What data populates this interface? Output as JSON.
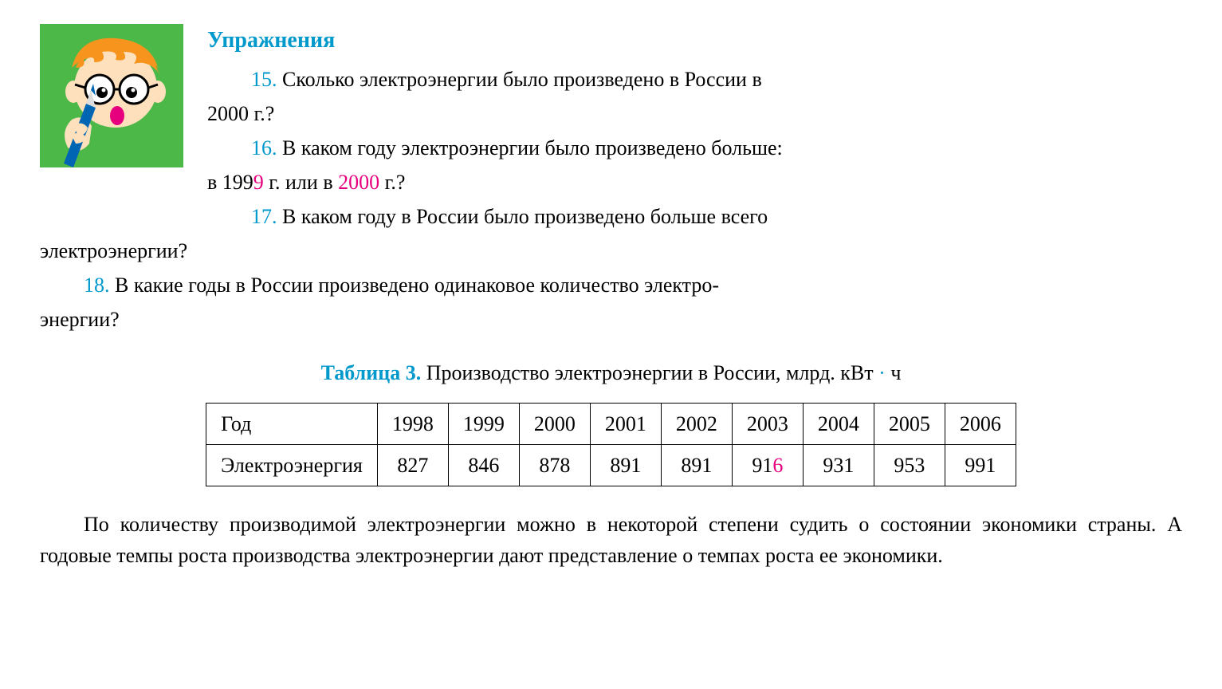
{
  "heading": "Упражнения",
  "questions": {
    "q15": {
      "num": "15.",
      "text_a": "Сколько электроэнергии было произведено в России в",
      "text_b": "2000 г.?"
    },
    "q16": {
      "num": "16.",
      "text_a": "В каком году электроэнергии было произведено больше:",
      "text_b_pre": "в 199",
      "pink1": "9",
      "text_b_mid": " г. или в ",
      "pink2": "2000",
      "text_b_post": " г.?"
    },
    "q17": {
      "num": "17.",
      "text_a": "В каком году в России было произведено больше всего",
      "text_b": "электроэнергии?"
    },
    "q18": {
      "num": "18.",
      "text": "В какие годы в России произведено одинаковое количество электро-",
      "text_b": "энергии?"
    }
  },
  "table": {
    "caption_label": "Таблица 3.",
    "caption_text_a": " Производство электроэнергии в России, млрд. кВт",
    "caption_dot": "·",
    "caption_text_b": "ч",
    "row_labels": [
      "Год",
      "Электроэнергия"
    ],
    "years": [
      "1998",
      "1999",
      "2000",
      "2001",
      "2002",
      "2003",
      "2004",
      "2005",
      "2006"
    ],
    "values": [
      "827",
      "846",
      "878",
      "891",
      "891",
      "916",
      "931",
      "953",
      "991"
    ],
    "pink_value_index": 5,
    "pink_char_index": 2
  },
  "footer_para": "По количеству производимой электроэнергии можно в некоторой степени судить о состоянии экономики страны. А годовые темпы роста производства электроэнергии дают представление о темпах роста ее экономики.",
  "colors": {
    "accent": "#0099cc",
    "pink": "#e6007e",
    "icon_bg": "#4cb848",
    "hair": "#f7941e",
    "skin": "#ffe0bd",
    "pen": "#0066b3"
  }
}
